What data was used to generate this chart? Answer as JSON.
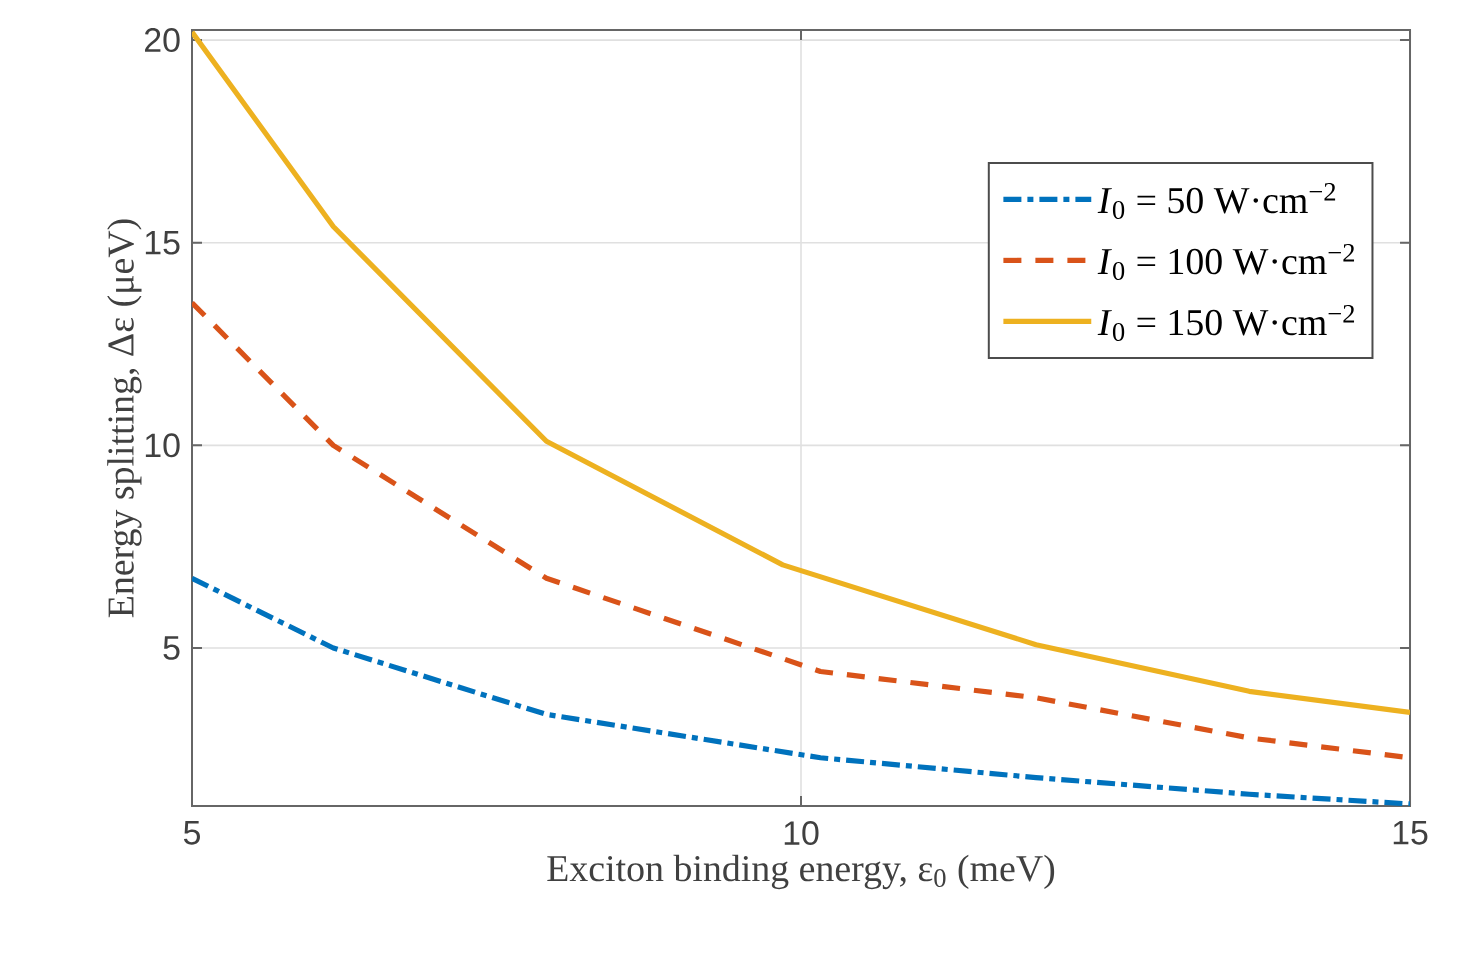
{
  "chart_data": {
    "type": "line",
    "xlabel": "Exciton binding energy, ε$_{0}$ (meV)",
    "ylabel": "Energy splitting, Δε (μeV)",
    "xlim": [
      5,
      15
    ],
    "ylim": [
      1.1,
      20.25
    ],
    "xticks": [
      5,
      10,
      15
    ],
    "yticks": [
      5,
      10,
      15,
      20
    ],
    "grid": true,
    "legend": "top right",
    "marker": "none",
    "series": [
      {
        "name": "*I*$_{0}$ = 50 W·cm$^{−2}$",
        "color": "#0072bd",
        "line_style": "dashdot",
        "x": [
          5,
          6.16,
          7.91,
          10.16,
          11.93,
          13.68,
          15
        ],
        "values": [
          6.72,
          5.0,
          3.36,
          2.29,
          1.8,
          1.39,
          1.15
        ]
      },
      {
        "name": "*I*$_{0}$ = 100 W·cm$^{−2}$",
        "color": "#d95319",
        "line_style": "dashed",
        "x": [
          5,
          6.16,
          7.91,
          10.16,
          11.93,
          13.68,
          15
        ],
        "values": [
          13.52,
          10.0,
          6.72,
          4.42,
          3.77,
          2.78,
          2.29
        ]
      },
      {
        "name": "*I*$_{0}$ = 150 W·cm$^{−2}$",
        "color": "#edb120",
        "line_style": "solid",
        "x": [
          5,
          6.16,
          7.91,
          9.85,
          11.93,
          13.68,
          15
        ],
        "values": [
          20.2,
          15.4,
          10.1,
          7.05,
          5.08,
          3.93,
          3.41
        ]
      }
    ]
  }
}
